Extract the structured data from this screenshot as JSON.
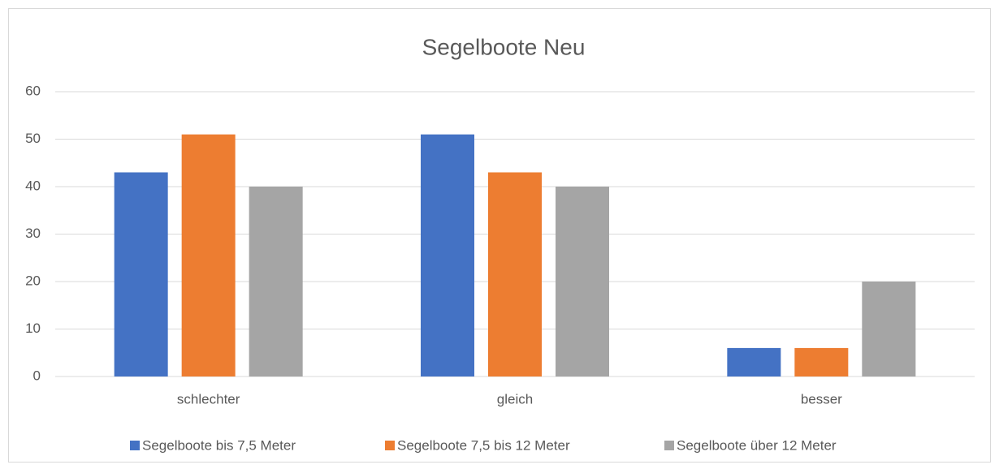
{
  "chart_data": {
    "type": "bar",
    "title": "Segelboote Neu",
    "categories": [
      "schlechter",
      "gleich",
      "besser"
    ],
    "series": [
      {
        "name": "Segelboote bis 7,5 Meter",
        "color": "#4472c4",
        "values": [
          43,
          51,
          6
        ]
      },
      {
        "name": "Segelboote 7,5 bis 12 Meter",
        "color": "#ed7d31",
        "values": [
          51,
          43,
          6
        ]
      },
      {
        "name": "Segelboote über 12 Meter",
        "color": "#a5a5a5",
        "values": [
          40,
          40,
          20
        ]
      }
    ],
    "ylim": [
      0,
      60
    ],
    "yticks": [
      0,
      10,
      20,
      30,
      40,
      50,
      60
    ],
    "grid": true,
    "legend": "bottom"
  }
}
